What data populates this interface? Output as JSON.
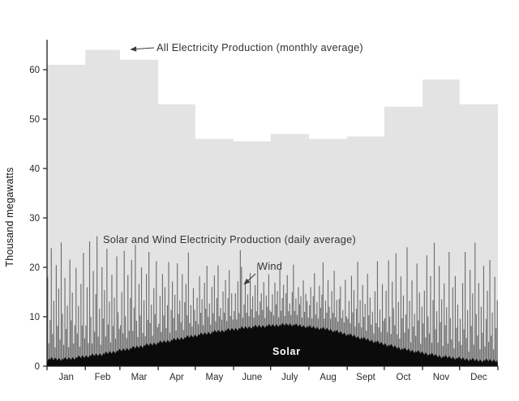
{
  "figure": {
    "ylabel": "Thousand megawatts",
    "annotations": {
      "all_production": "All Electricity Production (monthly average)",
      "solar_wind": "Solar and Wind Electricity Production (daily average)",
      "wind": "Wind",
      "solar": "Solar"
    }
  },
  "colors": {
    "monthly_area": "#e3e3e3",
    "wind_bars": "#6e6e6e",
    "solar_area": "#0b0b0b",
    "axis": "#1a1a1a"
  },
  "chart_data": {
    "type": "area",
    "title": "",
    "xlabel": "",
    "ylabel": "Thousand megawatts",
    "ylim": [
      0,
      66
    ],
    "grid": false,
    "legend_position": "none",
    "y_ticks": [
      0,
      10,
      20,
      30,
      40,
      50,
      60
    ],
    "months": [
      "Jan",
      "Feb",
      "Mar",
      "Apr",
      "May",
      "June",
      "July",
      "Aug",
      "Sept",
      "Oct",
      "Nov",
      "Dec"
    ],
    "month_days": [
      31,
      28,
      31,
      30,
      31,
      30,
      31,
      31,
      30,
      31,
      30,
      31
    ],
    "series": [
      {
        "name": "All Electricity Production (monthly average)",
        "type": "step-area",
        "color": "#e3e3e3",
        "values": [
          61,
          64,
          62,
          53,
          46,
          45.5,
          47,
          46,
          46.5,
          52.5,
          58,
          53
        ]
      },
      {
        "name": "Wind Electricity Production (daily average, stacked above solar)",
        "type": "bar",
        "color": "#6e6e6e",
        "values_daily": [
          17,
          3,
          8,
          22,
          5,
          12,
          2,
          19,
          7,
          14,
          4,
          24,
          9,
          3,
          16,
          6,
          11,
          2,
          20,
          8,
          13,
          3,
          7,
          18,
          5,
          10,
          2,
          15,
          6,
          21,
          4,
          6,
          14,
          3,
          23,
          8,
          2,
          17,
          5,
          12,
          24,
          4,
          9,
          2,
          18,
          7,
          13,
          3,
          21,
          6,
          10,
          2,
          16,
          5,
          11,
          3,
          19,
          8,
          4,
          5,
          12,
          3,
          20,
          7,
          2,
          15,
          4,
          10,
          18,
          3,
          8,
          21,
          5,
          2,
          13,
          6,
          16,
          3,
          9,
          2,
          14,
          5,
          19,
          4,
          8,
          2,
          11,
          6,
          17,
          3,
          4,
          9,
          2,
          14,
          5,
          11,
          3,
          7,
          16,
          2,
          6,
          12,
          4,
          9,
          2,
          15,
          5,
          8,
          3,
          13,
          2,
          7,
          11,
          4,
          17,
          3,
          6,
          2,
          10,
          5,
          3,
          8,
          2,
          12,
          4,
          7,
          2,
          10,
          5,
          14,
          3,
          6,
          2,
          9,
          4,
          11,
          2,
          7,
          13,
          3,
          5,
          2,
          8,
          4,
          10,
          2,
          6,
          12,
          3,
          7,
          2,
          4,
          7,
          2,
          10,
          3,
          16,
          12,
          2,
          5,
          9,
          3,
          7,
          2,
          11,
          4,
          6,
          2,
          8,
          3,
          13,
          2,
          5,
          7,
          3,
          9,
          2,
          6,
          4,
          10,
          3,
          3,
          6,
          2,
          9,
          4,
          7,
          2,
          11,
          3,
          5,
          8,
          2,
          6,
          10,
          3,
          4,
          2,
          7,
          12,
          3,
          5,
          2,
          8,
          4,
          6,
          2,
          9,
          3,
          7,
          5,
          2,
          4,
          8,
          2,
          6,
          11,
          3,
          5,
          2,
          9,
          4,
          7,
          13,
          2,
          6,
          3,
          10,
          5,
          2,
          8,
          4,
          12,
          3,
          6,
          2,
          7,
          9,
          3,
          5,
          2,
          11,
          4,
          3,
          7,
          2,
          12,
          5,
          9,
          2,
          6,
          15,
          3,
          8,
          2,
          11,
          4,
          7,
          2,
          13,
          5,
          9,
          3,
          6,
          2,
          10,
          4,
          16,
          3,
          7,
          2,
          12,
          5,
          5,
          11,
          3,
          17,
          6,
          2,
          13,
          8,
          4,
          19,
          3,
          9,
          2,
          15,
          6,
          11,
          3,
          7,
          21,
          4,
          10,
          2,
          14,
          5,
          8,
          3,
          18,
          6,
          12,
          2,
          9,
          6,
          13,
          3,
          20,
          8,
          4,
          16,
          2,
          11,
          23,
          5,
          9,
          3,
          18,
          7,
          12,
          2,
          15,
          6,
          10,
          3,
          21,
          8,
          4,
          14,
          2,
          17,
          6,
          11,
          3,
          8,
          3,
          15,
          6,
          22,
          4,
          10,
          2,
          18,
          7,
          13,
          3,
          24,
          9,
          5,
          16,
          2,
          11,
          6,
          19,
          3,
          8,
          14,
          4,
          20,
          5,
          10,
          2,
          17,
          7,
          12
        ]
      },
      {
        "name": "Solar Electricity Production (daily average)",
        "type": "area",
        "color": "#0b0b0b",
        "values_monthly_avg": [
          1.5,
          2.5,
          4,
          5.5,
          7,
          8,
          8.5,
          7.5,
          5.5,
          3.5,
          2,
          1.2
        ]
      }
    ]
  }
}
